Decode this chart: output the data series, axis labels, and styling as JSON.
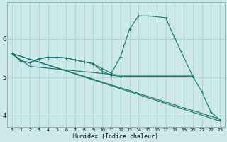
{
  "xlabel": "Humidex (Indice chaleur)",
  "bg_color": "#cce8e8",
  "grid_color": "#b0d4d4",
  "line_color": "#1a7870",
  "xlim": [
    -0.5,
    23.5
  ],
  "ylim": [
    3.7,
    6.95
  ],
  "xticks": [
    0,
    1,
    2,
    3,
    4,
    5,
    6,
    7,
    8,
    9,
    10,
    11,
    12,
    13,
    14,
    15,
    16,
    17,
    18,
    19,
    20,
    21,
    22,
    23
  ],
  "yticks": [
    4,
    5,
    6
  ],
  "series": [
    {
      "x": [
        0,
        1,
        2,
        3,
        4,
        5,
        6,
        7,
        8,
        9,
        10,
        11,
        12,
        13,
        14,
        15,
        16,
        17,
        18,
        20
      ],
      "y": [
        5.62,
        5.42,
        5.38,
        5.48,
        5.52,
        5.52,
        5.5,
        5.45,
        5.4,
        5.35,
        5.22,
        5.1,
        5.53,
        6.25,
        6.6,
        6.6,
        6.58,
        6.55,
        6.02,
        5.02
      ],
      "marker": true
    },
    {
      "x": [
        0,
        1,
        2,
        3,
        4,
        5,
        6,
        7,
        8,
        9,
        10,
        11,
        12,
        20,
        21,
        22,
        23
      ],
      "y": [
        5.62,
        5.42,
        5.38,
        5.48,
        5.52,
        5.52,
        5.5,
        5.45,
        5.4,
        5.35,
        5.15,
        5.05,
        5.02,
        5.02,
        4.62,
        4.08,
        3.88
      ],
      "marker": true
    },
    {
      "x": [
        0,
        2,
        12,
        20
      ],
      "y": [
        5.62,
        5.28,
        5.05,
        5.05
      ],
      "marker": false
    },
    {
      "x": [
        0,
        23
      ],
      "y": [
        5.62,
        3.85
      ],
      "marker": false
    },
    {
      "x": [
        0,
        23
      ],
      "y": [
        5.62,
        3.9
      ],
      "marker": false
    }
  ]
}
